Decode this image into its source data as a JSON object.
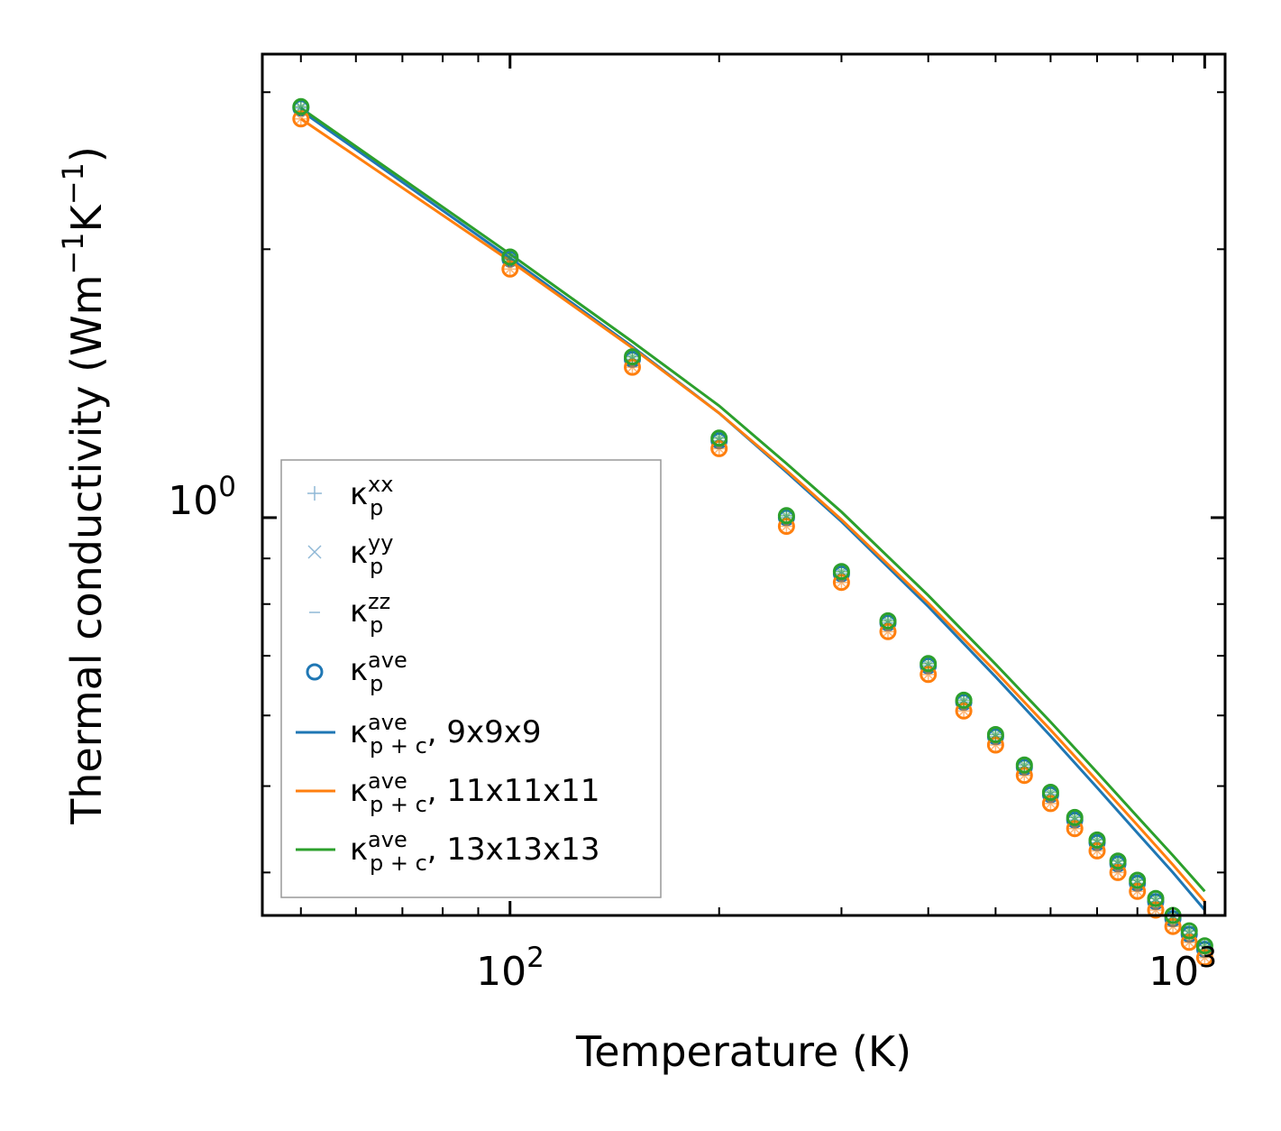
{
  "chart_data": {
    "type": "scatter",
    "title": "",
    "xlabel": "Temperature (K)",
    "ylabel": "Thermal conductivity (Wm",
    "ylabel_unit_parts": [
      "−1",
      "K",
      "−1",
      ")"
    ],
    "xscale": "log",
    "yscale": "log",
    "xlim": [
      44,
      1070
    ],
    "ylim": [
      0.358,
      3.31
    ],
    "x_tick_labels": [
      {
        "value": 100,
        "base": "10",
        "exp": "2"
      },
      {
        "value": 1000,
        "base": "10",
        "exp": "3"
      }
    ],
    "y_tick_labels": [
      {
        "value": 1,
        "base": "10",
        "exp": "0"
      }
    ],
    "legend_position": "lower-left",
    "legend": [
      {
        "sub": "p",
        "sup": "xx",
        "suffix": ""
      },
      {
        "sub": "p",
        "sup": "yy",
        "suffix": ""
      },
      {
        "sub": "p",
        "sup": "zz",
        "suffix": ""
      },
      {
        "sub": "p",
        "sup": "ave",
        "suffix": ""
      },
      {
        "sub": "p + c",
        "sup": "ave",
        "suffix": ", 9x9x9"
      },
      {
        "sub": "p + c",
        "sup": "ave",
        "suffix": ", 11x11x11"
      },
      {
        "sub": "p + c",
        "sup": "ave",
        "suffix": ", 13x13x13"
      }
    ],
    "kappa_symbol": "κ",
    "colors": {
      "blue": "#1f77b4",
      "orange": "#ff7f0e",
      "green": "#2ca02c",
      "light_blue": "#8fb8d6"
    },
    "series": [
      {
        "name": "kappa_p^ave (9x9x9)",
        "kind": "markers",
        "color": "#1f77b4",
        "x": [
          50,
          100,
          150,
          200,
          250,
          300,
          350,
          400,
          450,
          500,
          550,
          600,
          650,
          700,
          750,
          800,
          850,
          900,
          950,
          1000
        ],
        "y": [
          2.88,
          1.95,
          1.505,
          1.22,
          1.0,
          0.865,
          0.762,
          0.682,
          0.621,
          0.568,
          0.525,
          0.489,
          0.458,
          0.432,
          0.409,
          0.389,
          0.371,
          0.355,
          0.341,
          0.328
        ]
      },
      {
        "name": "kappa_p^ave (11x11x11)",
        "kind": "markers",
        "color": "#ff7f0e",
        "x": [
          50,
          100,
          150,
          200,
          250,
          300,
          350,
          400,
          450,
          500,
          550,
          600,
          650,
          700,
          750,
          800,
          850,
          900,
          950,
          1000
        ],
        "y": [
          2.8,
          1.9,
          1.475,
          1.195,
          0.978,
          0.846,
          0.745,
          0.667,
          0.607,
          0.556,
          0.514,
          0.478,
          0.448,
          0.423,
          0.4,
          0.381,
          0.363,
          0.348,
          0.334,
          0.321
        ]
      },
      {
        "name": "kappa_p^ave (13x13x13)",
        "kind": "markers",
        "color": "#2ca02c",
        "x": [
          50,
          100,
          150,
          200,
          250,
          300,
          350,
          400,
          450,
          500,
          550,
          600,
          650,
          700,
          750,
          800,
          850,
          900,
          950,
          1000
        ],
        "y": [
          2.89,
          1.96,
          1.515,
          1.228,
          1.005,
          0.87,
          0.766,
          0.686,
          0.624,
          0.571,
          0.528,
          0.492,
          0.461,
          0.435,
          0.412,
          0.392,
          0.374,
          0.358,
          0.344,
          0.331
        ]
      },
      {
        "name": "kappa_p+c^ave, 9x9x9",
        "kind": "line",
        "color": "#1f77b4",
        "x": [
          50,
          100,
          150,
          200,
          250,
          300,
          400,
          500,
          600,
          700,
          800,
          900,
          1000
        ],
        "y": [
          2.86,
          1.955,
          1.555,
          1.31,
          1.125,
          0.99,
          0.795,
          0.663,
          0.569,
          0.498,
          0.443,
          0.4,
          0.363
        ]
      },
      {
        "name": "kappa_p+c^ave, 11x11x11",
        "kind": "line",
        "color": "#ff7f0e",
        "x": [
          50,
          100,
          150,
          200,
          250,
          300,
          400,
          500,
          600,
          700,
          800,
          900,
          1000
        ],
        "y": [
          2.8,
          1.94,
          1.55,
          1.31,
          1.13,
          0.995,
          0.802,
          0.672,
          0.578,
          0.507,
          0.452,
          0.408,
          0.371
        ]
      },
      {
        "name": "kappa_p+c^ave, 13x13x13",
        "kind": "line",
        "color": "#2ca02c",
        "x": [
          50,
          100,
          150,
          200,
          250,
          300,
          400,
          500,
          600,
          700,
          800,
          900,
          1000
        ],
        "y": [
          2.88,
          1.975,
          1.575,
          1.335,
          1.15,
          1.015,
          0.818,
          0.685,
          0.59,
          0.518,
          0.462,
          0.418,
          0.381
        ]
      }
    ]
  }
}
